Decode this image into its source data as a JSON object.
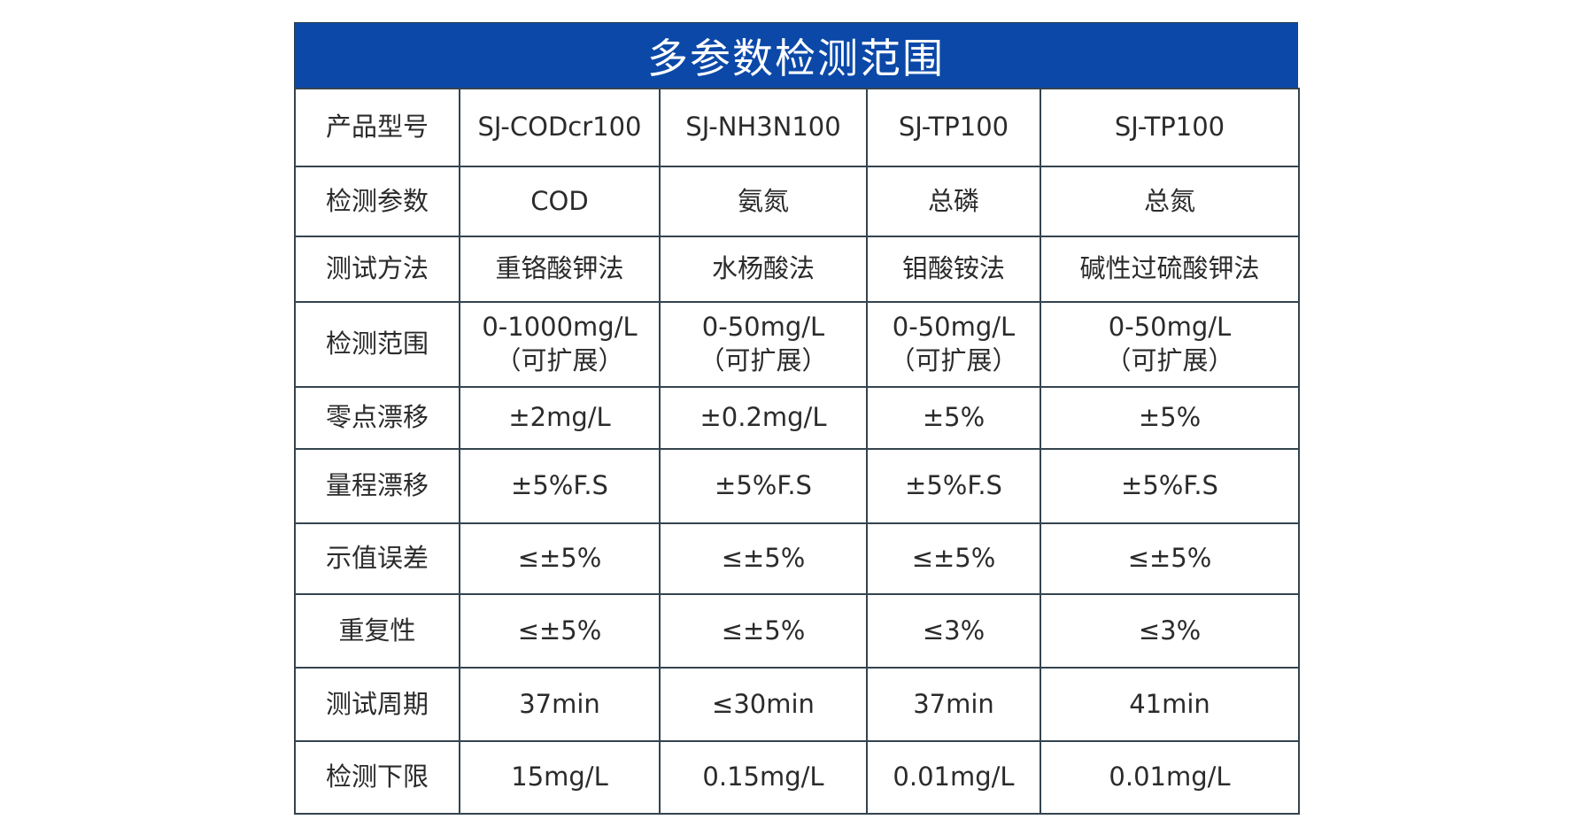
{
  "title": "多参数检测范围",
  "colors": {
    "header_bg": "#0b48a8",
    "border": "#34444f"
  },
  "rows": [
    {
      "label": "产品型号",
      "cells": [
        "SJ-CODcr100",
        "SJ-NH3N100",
        "SJ-TP100",
        "SJ-TP100"
      ]
    },
    {
      "label": "检测参数",
      "cells": [
        "COD",
        "氨氮",
        "总磷",
        "总氮"
      ]
    },
    {
      "label": "测试方法",
      "cells": [
        "重铬酸钾法",
        "水杨酸法",
        "钼酸铵法",
        "碱性过硫酸钾法"
      ]
    },
    {
      "label": "检测范围",
      "cells": [
        "0-1000mg/L",
        "0-50mg/L",
        "0-50mg/L",
        "0-50mg/L"
      ],
      "sub": [
        "（可扩展）",
        "（可扩展）",
        "（可扩展）",
        "（可扩展）"
      ]
    },
    {
      "label": "零点漂移",
      "cells": [
        "±2mg/L",
        "±0.2mg/L",
        "±5%",
        "±5%"
      ]
    },
    {
      "label": "量程漂移",
      "cells": [
        "±5%F.S",
        "±5%F.S",
        "±5%F.S",
        "±5%F.S"
      ]
    },
    {
      "label": "示值误差",
      "cells": [
        "≤±5%",
        "≤±5%",
        "≤±5%",
        "≤±5%"
      ]
    },
    {
      "label": "重复性",
      "cells": [
        "≤±5%",
        "≤±5%",
        "≤3%",
        "≤3%"
      ]
    },
    {
      "label": "测试周期",
      "cells": [
        "37min",
        "≤30min",
        "37min",
        "41min"
      ]
    },
    {
      "label": "检测下限",
      "cells": [
        "15mg/L",
        "0.15mg/L",
        "0.01mg/L",
        "0.01mg/L"
      ]
    }
  ]
}
